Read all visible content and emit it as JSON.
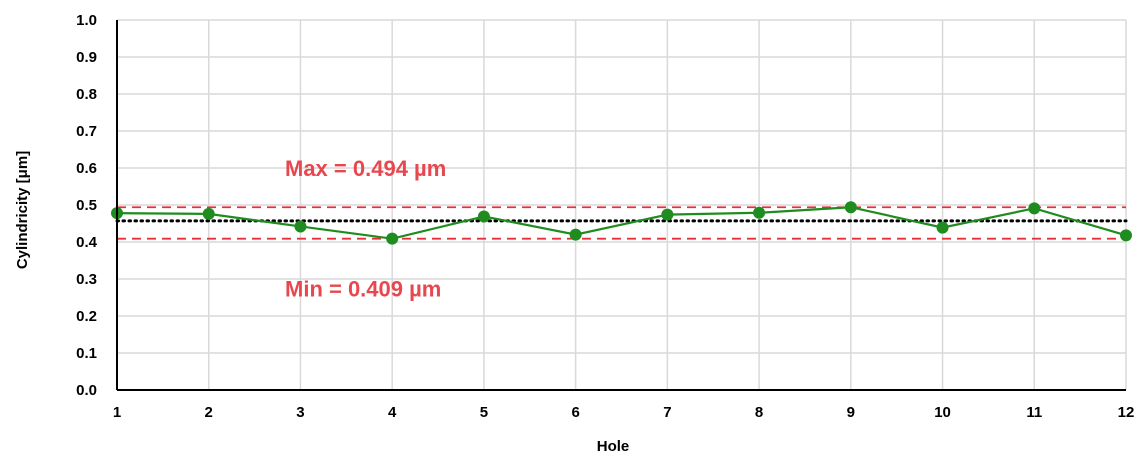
{
  "chart_data": {
    "type": "line",
    "xlabel": "Hole",
    "ylabel": "Cylindricity [μm]",
    "x": [
      1,
      2,
      3,
      4,
      5,
      6,
      7,
      8,
      9,
      10,
      11,
      12
    ],
    "x_tick_labels": [
      "1",
      "2",
      "3",
      "4",
      "5",
      "6",
      "7",
      "8",
      "9",
      "10",
      "11",
      "12"
    ],
    "y_tick_labels": [
      "0.0",
      "0.1",
      "0.2",
      "0.3",
      "0.4",
      "0.5",
      "0.6",
      "0.7",
      "0.8",
      "0.9",
      "1.0"
    ],
    "ylim": [
      0,
      1.0
    ],
    "xlim": [
      1,
      12
    ],
    "grid": true,
    "series": [
      {
        "values": [
          0.478,
          0.476,
          0.442,
          0.409,
          0.469,
          0.42,
          0.474,
          0.479,
          0.494,
          0.439,
          0.491,
          0.418
        ],
        "color": "#1e8c1e"
      }
    ],
    "reference_lines": [
      {
        "kind": "max",
        "value": 0.494,
        "style": "dashed",
        "color": "#e8303a"
      },
      {
        "kind": "min",
        "value": 0.409,
        "style": "dashed",
        "color": "#e8303a"
      },
      {
        "kind": "mean",
        "value": 0.457,
        "style": "dotted",
        "color": "#000000"
      }
    ],
    "annotations": [
      {
        "text": "Max = 0.494 µm",
        "color": "#e8474f",
        "anchor_value": 0.6
      },
      {
        "text": "Min = 0.409 µm",
        "color": "#e8474f",
        "anchor_value": 0.275
      }
    ]
  }
}
